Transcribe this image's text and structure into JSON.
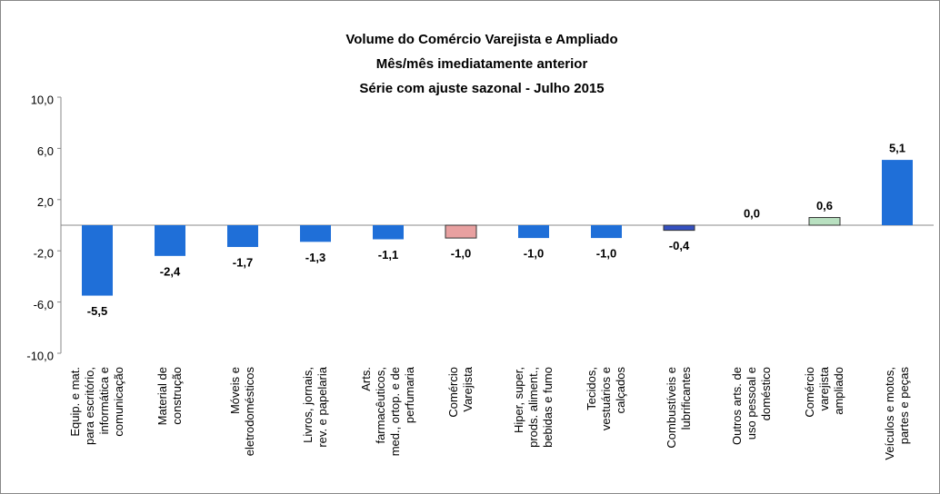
{
  "chart_data": {
    "type": "bar",
    "title_lines": [
      "Volume do Comércio Varejista e Ampliado",
      "Mês/mês imediatamente anterior",
      "Série com ajuste sazonal - Julho 2015"
    ],
    "categories": [
      "Equip. e mat.\npara escritório,\ninformática e\ncomunicação",
      "Material de\nconstrução",
      "Móveis e\neletrodomésticos",
      "Livros, jornais,\nrev. e papelaria",
      "Arts.\nfarmacêuticos,\nmed., ortop. e de\nperfumaria",
      "Comércio\nVarejista",
      "Hiper, super,\nprods. aliment.,\nbebidas e fumo",
      "Tecidos,\nvestuários e\ncalçados",
      "Combustíveis e\nlubrificantes",
      "Outros arts. de\nuso pessoal e\ndoméstico",
      "Comércio\nvarejista\nampliado",
      "Veículos e motos,\npartes e peças"
    ],
    "values": [
      -5.5,
      -2.4,
      -1.7,
      -1.3,
      -1.1,
      -1.0,
      -1.0,
      -1.0,
      -0.4,
      0.0,
      0.6,
      5.1
    ],
    "value_labels": [
      "-5,5",
      "-2,4",
      "-1,7",
      "-1,3",
      "-1,1",
      "-1,0",
      "-1,0",
      "-1,0",
      "-0,4",
      "0,0",
      "0,6",
      "5,1"
    ],
    "colors": [
      "#1f6fd8",
      "#1f6fd8",
      "#1f6fd8",
      "#1f6fd8",
      "#1f6fd8",
      "#e8a0a0",
      "#1f6fd8",
      "#1f6fd8",
      "#3550c0",
      "#1f6fd8",
      "#b8e0c0",
      "#1f6fd8"
    ],
    "ylim": [
      -10,
      10
    ],
    "yticks": [
      {
        "value": -10,
        "label": "-10,0"
      },
      {
        "value": -6,
        "label": "-6,0"
      },
      {
        "value": -2,
        "label": "-2,0"
      },
      {
        "value": 2,
        "label": "2,0"
      },
      {
        "value": 6,
        "label": "6,0"
      },
      {
        "value": 10,
        "label": "10,0"
      }
    ],
    "grid": false
  }
}
